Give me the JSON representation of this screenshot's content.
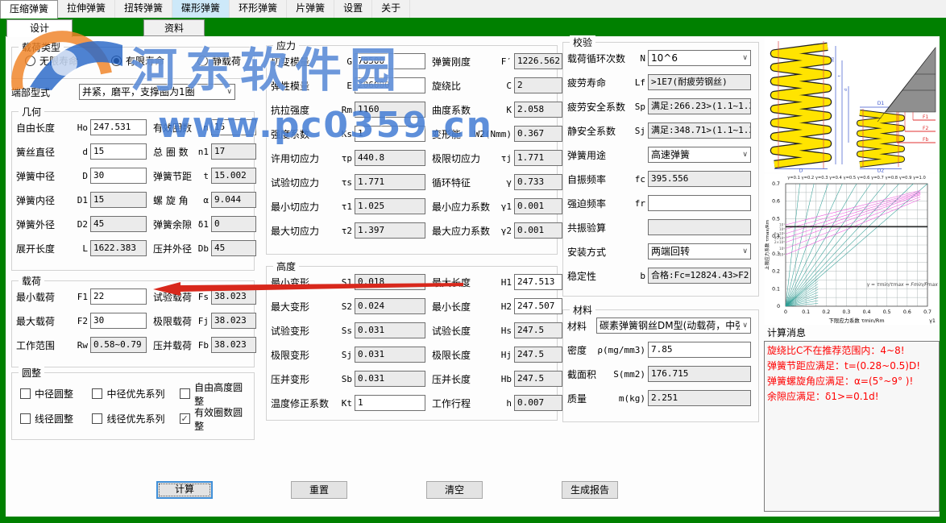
{
  "menu_tabs": {
    "items": [
      {
        "key": "compression",
        "label": "压缩弹簧",
        "active": true
      },
      {
        "key": "extension",
        "label": "拉伸弹簧"
      },
      {
        "key": "torsion",
        "label": "扭转弹簧"
      },
      {
        "key": "disc",
        "label": "碟形弹簧",
        "highlighted": true
      },
      {
        "key": "ring",
        "label": "环形弹簧"
      },
      {
        "key": "leaf",
        "label": "片弹簧"
      },
      {
        "key": "settings",
        "label": "设置"
      },
      {
        "key": "about",
        "label": "关于"
      }
    ]
  },
  "sub_tabs": {
    "items": [
      {
        "key": "design",
        "label": "设计",
        "active": true
      },
      {
        "key": "data",
        "label": "资料",
        "active": false
      }
    ]
  },
  "watermark": {
    "line1": "河东软件园",
    "line2": "www.pc0359.cn"
  },
  "load_type": {
    "title": "载荷类型",
    "options": [
      {
        "key": "infinite-life",
        "label": "无限寿命",
        "selected": false
      },
      {
        "key": "finite-life",
        "label": "有限寿命",
        "selected": true
      },
      {
        "key": "static-load",
        "label": "静载荷",
        "selected": false
      }
    ]
  },
  "end_type": {
    "label": "端部型式",
    "value": "并紧，磨平，支撑圈为1圈"
  },
  "sections": {
    "geometry": {
      "title": "几何",
      "rows": [
        [
          {
            "key": "Ho",
            "label": "自由长度",
            "sym": "Ho",
            "value": "247.531",
            "type": "input"
          },
          {
            "key": "n",
            "label": "有效圈数",
            "sym": "n",
            "value": "15",
            "type": "input"
          }
        ],
        [
          {
            "key": "d",
            "label": "簧丝直径",
            "sym": "d",
            "value": "15",
            "type": "input"
          },
          {
            "key": "n1",
            "label": "总 圈 数",
            "sym": "n1",
            "value": "17",
            "type": "ro"
          }
        ],
        [
          {
            "key": "D",
            "label": "弹簧中径",
            "sym": "D",
            "value": "30",
            "type": "input"
          },
          {
            "key": "t",
            "label": "弹簧节距",
            "sym": "t",
            "value": "15.002",
            "type": "ro"
          }
        ],
        [
          {
            "key": "D1",
            "label": "弹簧内径",
            "sym": "D1",
            "value": "15",
            "type": "ro"
          },
          {
            "key": "alpha",
            "label": "螺 旋 角",
            "sym": "α",
            "value": "9.044",
            "type": "ro"
          }
        ],
        [
          {
            "key": "D2",
            "label": "弹簧外径",
            "sym": "D2",
            "value": "45",
            "type": "ro"
          },
          {
            "key": "delta1",
            "label": "弹簧余隙",
            "sym": "δ1",
            "value": "0",
            "type": "ro"
          }
        ],
        [
          {
            "key": "L",
            "label": "展开长度",
            "sym": "L",
            "value": "1622.383",
            "type": "ro"
          },
          {
            "key": "Db",
            "label": "压并外径",
            "sym": "Db",
            "value": "45",
            "type": "ro"
          }
        ]
      ]
    },
    "load": {
      "title": "载荷",
      "rows": [
        [
          {
            "key": "F1",
            "label": "最小载荷",
            "sym": "F1",
            "value": "22",
            "type": "input"
          },
          {
            "key": "Fs",
            "label": "试验载荷",
            "sym": "Fs",
            "value": "38.023",
            "type": "ro"
          }
        ],
        [
          {
            "key": "F2",
            "label": "最大载荷",
            "sym": "F2",
            "value": "30",
            "type": "input"
          },
          {
            "key": "Fj",
            "label": "极限载荷",
            "sym": "Fj",
            "value": "38.023",
            "type": "ro"
          }
        ],
        [
          {
            "key": "Rw",
            "label": "工作范围",
            "sym": "Rw",
            "value": "0.58~0.79",
            "type": "ro"
          },
          {
            "key": "Fb",
            "label": "压并载荷",
            "sym": "Fb",
            "value": "38.023",
            "type": "ro"
          }
        ]
      ]
    },
    "rounding": {
      "title": "圆整",
      "rows": [
        [
          {
            "key": "mid-dia-round",
            "label": "中径圆整",
            "checked": false
          },
          {
            "key": "mid-dia-series",
            "label": "中径优先系列",
            "checked": false
          },
          {
            "key": "free-len-round",
            "label": "自由高度圆整",
            "checked": false
          }
        ],
        [
          {
            "key": "wire-dia-round",
            "label": "线径圆整",
            "checked": false
          },
          {
            "key": "wire-dia-series",
            "label": "线径优先系列",
            "checked": false
          },
          {
            "key": "coils-round",
            "label": "有效圈数圆整",
            "checked": true
          }
        ]
      ]
    },
    "stress": {
      "title": "应力",
      "rows": [
        [
          {
            "key": "G",
            "label": "切变模量",
            "sym": "G",
            "value": "78500",
            "type": "input"
          },
          {
            "key": "Fprime",
            "label": "弹簧刚度",
            "sym": "F′",
            "value": "1226.562",
            "type": "ro"
          }
        ],
        [
          {
            "key": "E",
            "label": "弹性模量",
            "sym": "E",
            "value": "206000",
            "type": "input"
          },
          {
            "key": "C",
            "label": "旋绕比",
            "sym": "C",
            "value": "2",
            "type": "ro"
          }
        ],
        [
          {
            "key": "Rm",
            "label": "抗拉强度",
            "sym": "Rm",
            "value": "1160",
            "type": "ro"
          },
          {
            "key": "K",
            "label": "曲度系数",
            "sym": "K",
            "value": "2.058",
            "type": "ro"
          }
        ],
        [
          {
            "key": "Ks",
            "label": "强度系数",
            "sym": "Ks",
            "value": "1",
            "type": "input"
          },
          {
            "key": "W2",
            "label": "变形能",
            "sym": "W2(Nmm)",
            "value": "0.367",
            "type": "ro"
          }
        ],
        [
          {
            "key": "taup",
            "label": "许用切应力",
            "sym": "τp",
            "value": "440.8",
            "type": "ro"
          },
          {
            "key": "tauj",
            "label": "极限切应力",
            "sym": "τj",
            "value": "1.771",
            "type": "ro"
          }
        ],
        [
          {
            "key": "taus",
            "label": "试验切应力",
            "sym": "τs",
            "value": "1.771",
            "type": "ro"
          },
          {
            "key": "gamma",
            "label": "循环特征",
            "sym": "γ",
            "value": "0.733",
            "type": "ro"
          }
        ],
        [
          {
            "key": "tau1",
            "label": "最小切应力",
            "sym": "τ1",
            "value": "1.025",
            "type": "ro"
          },
          {
            "key": "gammamin",
            "label": "最小应力系数",
            "sym": "γ1",
            "value": "0.001",
            "type": "ro"
          }
        ],
        [
          {
            "key": "tau2",
            "label": "最大切应力",
            "sym": "τ2",
            "value": "1.397",
            "type": "ro"
          },
          {
            "key": "gammamax",
            "label": "最大应力系数",
            "sym": "γ2",
            "value": "0.001",
            "type": "ro"
          }
        ]
      ]
    },
    "height": {
      "title": "高度",
      "rows": [
        [
          {
            "key": "S1",
            "label": "最小变形",
            "sym": "S1",
            "value": "0.018",
            "type": "ro"
          },
          {
            "key": "H1",
            "label": "最大长度",
            "sym": "H1",
            "value": "247.513",
            "type": "input"
          }
        ],
        [
          {
            "key": "S2",
            "label": "最大变形",
            "sym": "S2",
            "value": "0.024",
            "type": "ro"
          },
          {
            "key": "H2",
            "label": "最小长度",
            "sym": "H2",
            "value": "247.507",
            "type": "input"
          }
        ],
        [
          {
            "key": "Ss",
            "label": "试验变形",
            "sym": "Ss",
            "value": "0.031",
            "type": "ro"
          },
          {
            "key": "Hs",
            "label": "试验长度",
            "sym": "Hs",
            "value": "247.5",
            "type": "ro"
          }
        ],
        [
          {
            "key": "Sj",
            "label": "极限变形",
            "sym": "Sj",
            "value": "0.031",
            "type": "ro"
          },
          {
            "key": "Hj",
            "label": "极限长度",
            "sym": "Hj",
            "value": "247.5",
            "type": "ro"
          }
        ],
        [
          {
            "key": "Sb",
            "label": "压并变形",
            "sym": "Sb",
            "value": "0.031",
            "type": "ro"
          },
          {
            "key": "Hb",
            "label": "压并长度",
            "sym": "Hb",
            "value": "247.5",
            "type": "ro"
          }
        ],
        [
          {
            "key": "Kt",
            "label": "温度修正系数",
            "sym": "Kt",
            "value": "1",
            "type": "input"
          },
          {
            "key": "h",
            "label": "工作行程",
            "sym": "h",
            "value": "0.007",
            "type": "ro"
          }
        ]
      ]
    },
    "check": {
      "title": "校验",
      "rows": [
        [
          {
            "key": "N",
            "label": "载荷循环次数",
            "sym": "N",
            "value": "10^6",
            "type": "select"
          }
        ],
        [
          {
            "key": "Lf",
            "label": "疲劳寿命",
            "sym": "Lf",
            "value": ">1E7(耐疲劳钢丝)",
            "type": "ro"
          }
        ],
        [
          {
            "key": "Sp",
            "label": "疲劳安全系数",
            "sym": "Sp",
            "value": "满足:266.23>(1.1~1.3)",
            "type": "ro"
          }
        ],
        [
          {
            "key": "Sjs",
            "label": "静安全系数",
            "sym": "Sj",
            "value": "满足:348.71>(1.1~1.3)",
            "type": "ro"
          }
        ],
        [
          {
            "key": "use",
            "label": "弹簧用途",
            "sym": "",
            "value": "高速弹簧",
            "type": "select"
          }
        ],
        [
          {
            "key": "fc",
            "label": "自振频率",
            "sym": "fc",
            "value": "395.556",
            "type": "ro"
          }
        ],
        [
          {
            "key": "fr",
            "label": "强迫频率",
            "sym": "fr",
            "value": "",
            "type": "input"
          }
        ],
        [
          {
            "key": "resonance",
            "label": "共振验算",
            "sym": "",
            "value": "",
            "type": "ro"
          }
        ],
        [
          {
            "key": "install",
            "label": "安装方式",
            "sym": "",
            "value": "两端回转",
            "type": "select"
          }
        ],
        [
          {
            "key": "b",
            "label": "稳定性",
            "sym": "b",
            "value": "合格:Fc=12824.43>F2",
            "type": "ro"
          }
        ]
      ]
    },
    "material": {
      "title": "材料",
      "rows": [
        [
          {
            "key": "material",
            "label": "材料",
            "sym": "",
            "value": "碳素弹簧钢丝DM型(动载荷，中强",
            "type": "select",
            "wide": true
          }
        ],
        [
          {
            "key": "rho",
            "label": "密度",
            "sym": "ρ(mg/mm3)",
            "value": "7.85",
            "type": "input"
          }
        ],
        [
          {
            "key": "S",
            "label": "截面积",
            "sym": "S(mm2)",
            "value": "176.715",
            "type": "ro"
          }
        ],
        [
          {
            "key": "m",
            "label": "质量",
            "sym": "m(kg)",
            "value": "2.251",
            "type": "ro"
          }
        ]
      ]
    }
  },
  "buttons": [
    {
      "key": "calculate",
      "label": "计算",
      "focused": true
    },
    {
      "key": "reset",
      "label": "重置"
    },
    {
      "key": "clear",
      "label": "清空"
    },
    {
      "key": "report",
      "label": "生成报告"
    }
  ],
  "messages": {
    "title": "计算消息",
    "lines": [
      "旋绕比C不在推荐范围内：4~8!",
      "弹簧节距应满足：t=(0.28~0.5)D!",
      "弹簧螺旋角应满足：α=(5°~9° )!",
      "余隙应满足：δ1>=0.1d!"
    ]
  },
  "diagram": {
    "force_labels": [
      "F1",
      "F2",
      "Fb"
    ],
    "dim_labels": [
      "D",
      "D1",
      "D2"
    ],
    "dim_small": [
      "H0",
      "t",
      "d"
    ],
    "spring_color": "#ffe400"
  },
  "chart_data": {
    "type": "line",
    "title": "γ=0.1 γ=0.2 γ=0.3 γ=0.4 γ=0.5 γ=0.6 γ=0.7 γ=0.8 γ=0.9 γ=1.0",
    "xlabel": "下限应力系数 τmin/Rm",
    "xlabel_right": "γ1",
    "ylabel": "上限应力系数 τmax/Rm",
    "xlim": [
      0,
      0.7
    ],
    "ylim": [
      0,
      0.7
    ],
    "xticks": [
      "0",
      "0.1",
      "0.2",
      "0.3",
      "0.4",
      "0.5",
      "0.6",
      "0.7"
    ],
    "yticks": [
      "0",
      "0.1",
      "0.2",
      "0.3",
      "0.4",
      "0.5",
      "0.6",
      "0.7"
    ],
    "grid": true,
    "grid_step": 0.05,
    "gamma_lines": [
      0.1,
      0.2,
      0.3,
      0.4,
      0.5,
      0.6,
      0.7,
      0.8,
      0.9,
      1.0
    ],
    "life_lines": {
      "labels": [
        "10⁴",
        "10⁵",
        "2×10⁵",
        "4×10⁵",
        "6×10⁵",
        "10⁶",
        "10⁷"
      ],
      "start_y": [
        0.465,
        0.44,
        0.415,
        0.39,
        0.365,
        0.33,
        0.295
      ],
      "end_x": 0.665,
      "end_y": [
        0.662,
        0.655,
        0.649,
        0.643,
        0.637,
        0.625,
        0.612
      ]
    },
    "hline_y": 0.455,
    "annotation": "γ = τmin/τmax = Fmin/Fmax",
    "colors": {
      "gamma": "#2f9d94",
      "life": "#ee55dd",
      "hline": "#111111"
    }
  }
}
